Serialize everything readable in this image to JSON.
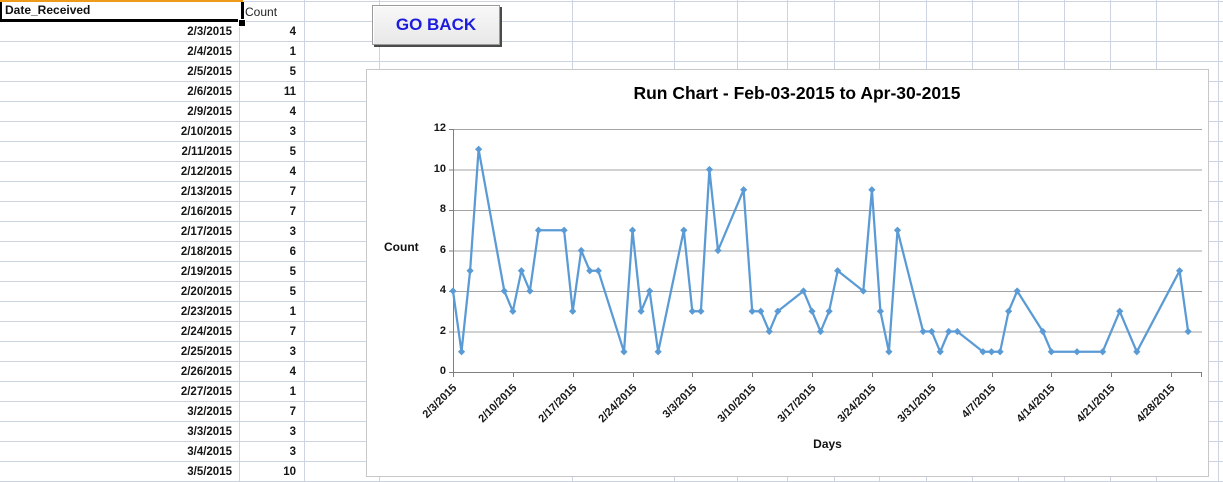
{
  "sheet": {
    "columns": {
      "date": "Date_Received",
      "count": "Count"
    },
    "rows": [
      {
        "date": "2/3/2015",
        "count": "4"
      },
      {
        "date": "2/4/2015",
        "count": "1"
      },
      {
        "date": "2/5/2015",
        "count": "5"
      },
      {
        "date": "2/6/2015",
        "count": "11"
      },
      {
        "date": "2/9/2015",
        "count": "4"
      },
      {
        "date": "2/10/2015",
        "count": "3"
      },
      {
        "date": "2/11/2015",
        "count": "5"
      },
      {
        "date": "2/12/2015",
        "count": "4"
      },
      {
        "date": "2/13/2015",
        "count": "7"
      },
      {
        "date": "2/16/2015",
        "count": "7"
      },
      {
        "date": "2/17/2015",
        "count": "3"
      },
      {
        "date": "2/18/2015",
        "count": "6"
      },
      {
        "date": "2/19/2015",
        "count": "5"
      },
      {
        "date": "2/20/2015",
        "count": "5"
      },
      {
        "date": "2/23/2015",
        "count": "1"
      },
      {
        "date": "2/24/2015",
        "count": "7"
      },
      {
        "date": "2/25/2015",
        "count": "3"
      },
      {
        "date": "2/26/2015",
        "count": "4"
      },
      {
        "date": "2/27/2015",
        "count": "1"
      },
      {
        "date": "3/2/2015",
        "count": "7"
      },
      {
        "date": "3/3/2015",
        "count": "3"
      },
      {
        "date": "3/4/2015",
        "count": "3"
      },
      {
        "date": "3/5/2015",
        "count": "10"
      }
    ]
  },
  "toolbar": {
    "go_back_label": "GO BACK"
  },
  "chart_data": {
    "type": "line",
    "title": "Run Chart - Feb-03-2015 to Apr-30-2015",
    "xlabel": "Days",
    "ylabel": "Count",
    "ylim": [
      0,
      12
    ],
    "y_ticks": [
      0,
      2,
      4,
      6,
      8,
      10,
      12
    ],
    "x_tick_labels": [
      "2/3/2015",
      "2/10/2015",
      "2/17/2015",
      "2/24/2015",
      "3/3/2015",
      "3/10/2015",
      "3/17/2015",
      "3/24/2015",
      "3/31/2015",
      "4/7/2015",
      "4/14/2015",
      "4/21/2015",
      "4/28/2015"
    ],
    "grid": true,
    "legend": "none",
    "line_color": "#5B9BD5",
    "series": [
      {
        "name": "Count",
        "points": [
          [
            "2/3/2015",
            4
          ],
          [
            "2/4/2015",
            1
          ],
          [
            "2/5/2015",
            5
          ],
          [
            "2/6/2015",
            11
          ],
          [
            "2/9/2015",
            4
          ],
          [
            "2/10/2015",
            3
          ],
          [
            "2/11/2015",
            5
          ],
          [
            "2/12/2015",
            4
          ],
          [
            "2/13/2015",
            7
          ],
          [
            "2/16/2015",
            7
          ],
          [
            "2/17/2015",
            3
          ],
          [
            "2/18/2015",
            6
          ],
          [
            "2/19/2015",
            5
          ],
          [
            "2/20/2015",
            5
          ],
          [
            "2/23/2015",
            1
          ],
          [
            "2/24/2015",
            7
          ],
          [
            "2/25/2015",
            3
          ],
          [
            "2/26/2015",
            4
          ],
          [
            "2/27/2015",
            1
          ],
          [
            "3/2/2015",
            7
          ],
          [
            "3/3/2015",
            3
          ],
          [
            "3/4/2015",
            3
          ],
          [
            "3/5/2015",
            10
          ],
          [
            "3/6/2015",
            6
          ],
          [
            "3/9/2015",
            9
          ],
          [
            "3/10/2015",
            3
          ],
          [
            "3/11/2015",
            3
          ],
          [
            "3/12/2015",
            2
          ],
          [
            "3/13/2015",
            3
          ],
          [
            "3/16/2015",
            4
          ],
          [
            "3/17/2015",
            3
          ],
          [
            "3/18/2015",
            2
          ],
          [
            "3/19/2015",
            3
          ],
          [
            "3/20/2015",
            5
          ],
          [
            "3/23/2015",
            4
          ],
          [
            "3/24/2015",
            9
          ],
          [
            "3/25/2015",
            3
          ],
          [
            "3/26/2015",
            1
          ],
          [
            "3/27/2015",
            7
          ],
          [
            "3/30/2015",
            2
          ],
          [
            "3/31/2015",
            2
          ],
          [
            "4/1/2015",
            1
          ],
          [
            "4/2/2015",
            2
          ],
          [
            "4/3/2015",
            2
          ],
          [
            "4/6/2015",
            1
          ],
          [
            "4/7/2015",
            1
          ],
          [
            "4/8/2015",
            1
          ],
          [
            "4/9/2015",
            3
          ],
          [
            "4/10/2015",
            4
          ],
          [
            "4/13/2015",
            2
          ],
          [
            "4/14/2015",
            1
          ],
          [
            "4/17/2015",
            1
          ],
          [
            "4/20/2015",
            1
          ],
          [
            "4/22/2015",
            3
          ],
          [
            "4/24/2015",
            1
          ],
          [
            "4/29/2015",
            5
          ],
          [
            "4/30/2015",
            2
          ]
        ]
      }
    ]
  }
}
